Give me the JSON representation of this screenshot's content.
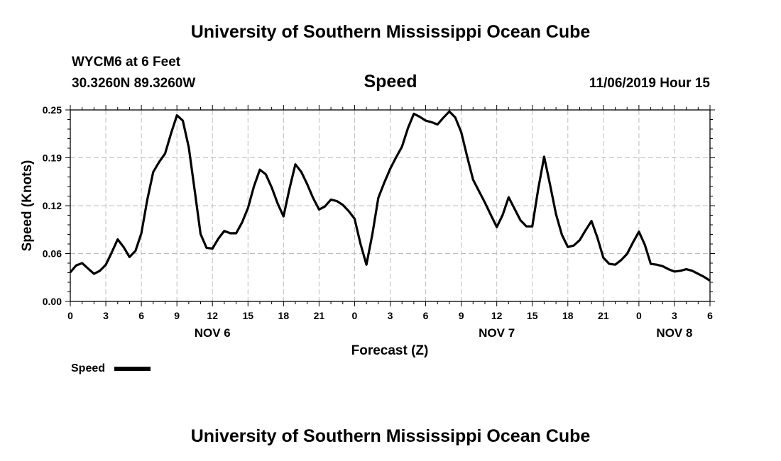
{
  "header": {
    "title_top": "University of Southern Mississippi Ocean Cube",
    "title_bottom": "University of Southern Mississippi Ocean Cube",
    "station": "WYCM6 at 6 Feet",
    "coords": "30.3260N 89.3260W",
    "datetime": "11/06/2019 Hour 15"
  },
  "chart_data": {
    "type": "line",
    "title": "Speed",
    "xlabel": "Forecast (Z)",
    "ylabel": "Speed (Knots)",
    "xlim": [
      0,
      54
    ],
    "ylim": [
      0,
      0.25
    ],
    "y_ticks": [
      "0.00",
      "0.06",
      "0.12",
      "0.19",
      "0.25"
    ],
    "x_ticks": [
      "0",
      "3",
      "6",
      "9",
      "12",
      "15",
      "18",
      "21",
      "0",
      "3",
      "6",
      "9",
      "12",
      "15",
      "18",
      "21",
      "0",
      "3",
      "6"
    ],
    "day_labels": [
      {
        "label": "NOV 6",
        "x": 12
      },
      {
        "label": "NOV 7",
        "x": 36
      },
      {
        "label": "NOV 8",
        "x": 51
      }
    ],
    "grid": true,
    "legend": {
      "position": "bottom-left",
      "label": "Speed"
    },
    "series": [
      {
        "name": "Speed",
        "color": "#000000",
        "x": [
          0,
          0.5,
          1,
          1.5,
          2,
          2.5,
          3,
          3.5,
          4,
          4.5,
          5,
          5.5,
          6,
          6.5,
          7,
          7.5,
          8,
          8.5,
          9,
          9.5,
          10,
          10.5,
          11,
          11.5,
          12,
          12.5,
          13,
          13.5,
          14,
          14.5,
          15,
          15.5,
          16,
          16.5,
          17,
          17.5,
          18,
          18.5,
          19,
          19.5,
          20,
          20.5,
          21,
          21.5,
          22,
          22.5,
          23,
          23.5,
          24,
          24.5,
          25,
          25.5,
          26,
          26.5,
          27,
          27.5,
          28,
          28.5,
          29,
          29.5,
          30,
          30.5,
          31,
          31.5,
          32,
          32.5,
          33,
          33.5,
          34,
          34.5,
          35,
          35.5,
          36,
          36.5,
          37,
          37.5,
          38,
          38.5,
          39,
          39.5,
          40,
          40.5,
          41,
          41.5,
          42,
          42.5,
          43,
          43.5,
          44,
          44.5,
          45,
          45.5,
          46,
          46.5,
          47,
          47.5,
          48,
          48.5,
          49,
          49.5,
          50,
          50.5,
          51,
          51.5,
          52,
          52.5,
          53,
          53.5,
          54
        ],
        "values": [
          0.038,
          0.047,
          0.05,
          0.043,
          0.036,
          0.04,
          0.048,
          0.064,
          0.081,
          0.071,
          0.058,
          0.066,
          0.089,
          0.133,
          0.169,
          0.182,
          0.193,
          0.219,
          0.243,
          0.236,
          0.201,
          0.145,
          0.088,
          0.07,
          0.069,
          0.082,
          0.092,
          0.089,
          0.089,
          0.103,
          0.122,
          0.15,
          0.172,
          0.166,
          0.149,
          0.128,
          0.111,
          0.147,
          0.179,
          0.169,
          0.153,
          0.135,
          0.12,
          0.124,
          0.133,
          0.131,
          0.126,
          0.118,
          0.108,
          0.075,
          0.048,
          0.088,
          0.135,
          0.155,
          0.173,
          0.188,
          0.202,
          0.226,
          0.245,
          0.241,
          0.236,
          0.234,
          0.231,
          0.24,
          0.248,
          0.24,
          0.221,
          0.189,
          0.159,
          0.144,
          0.129,
          0.113,
          0.097,
          0.113,
          0.136,
          0.121,
          0.106,
          0.098,
          0.098,
          0.147,
          0.189,
          0.152,
          0.114,
          0.087,
          0.071,
          0.073,
          0.08,
          0.093,
          0.105,
          0.083,
          0.057,
          0.049,
          0.048,
          0.054,
          0.062,
          0.077,
          0.091,
          0.074,
          0.049,
          0.048,
          0.046,
          0.042,
          0.039,
          0.04,
          0.042,
          0.04,
          0.036,
          0.032,
          0.027
        ]
      }
    ]
  }
}
